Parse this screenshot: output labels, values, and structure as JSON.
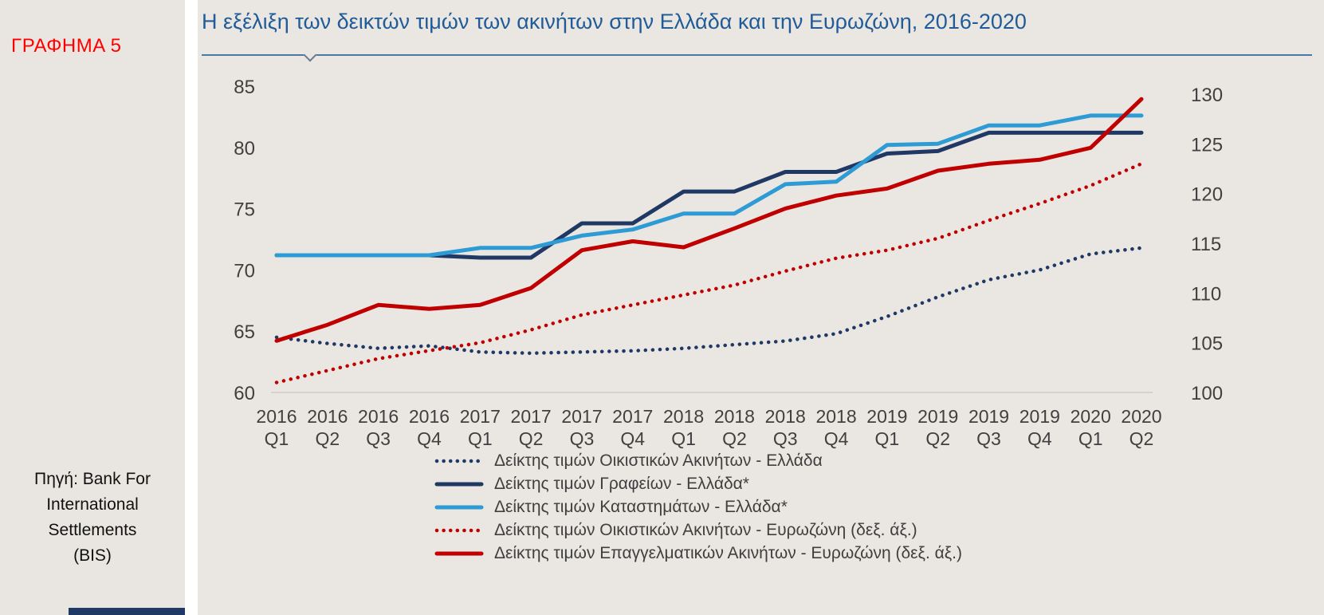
{
  "sidebar": {
    "figure_label": "ΓΡΑΦΗΜΑ 5",
    "source_lines": [
      "Πηγή: Bank For",
      "International",
      "Settlements",
      "(BIS)"
    ]
  },
  "header": {
    "title": "Η εξέλιξη των δεικτών τιμών των ακινήτων στην Ελλάδα και την Ευρωζώνη, 2016-2020"
  },
  "colors": {
    "title_blue": "#215c98",
    "figure_red": "#ff0000",
    "navy": "#1f3864",
    "light_blue": "#2e9bd5",
    "red": "#c00000",
    "axis_text": "#404040",
    "baseline": "#cfccc6"
  },
  "chart_data": {
    "type": "line",
    "title": "Η εξέλιξη των δεικτών τιμών των ακινήτων στην Ελλάδα και την Ευρωζώνη, 2016-2020",
    "categories": [
      "2016 Q1",
      "2016 Q2",
      "2016 Q3",
      "2016 Q4",
      "2017 Q1",
      "2017 Q2",
      "2017 Q3",
      "2017 Q4",
      "2018 Q1",
      "2018 Q2",
      "2018 Q3",
      "2018 Q4",
      "2019 Q1",
      "2019 Q2",
      "2019 Q3",
      "2019 Q4",
      "2020 Q1",
      "2020 Q2"
    ],
    "left_axis": {
      "min": 60,
      "max": 85,
      "ticks": [
        85,
        80,
        75,
        70,
        65,
        60
      ]
    },
    "right_axis": {
      "min": 100,
      "max": 130,
      "ticks": [
        130,
        125,
        120,
        115,
        110,
        105,
        100
      ]
    },
    "grid": "baseline-only",
    "legend_position": "bottom",
    "series": [
      {
        "name": "Δείκτης τιμών Οικιστικών Ακινήτων - Ελλάδα",
        "axis": "left",
        "style": "dotted",
        "color": "#1f3864",
        "values": [
          64.5,
          64.0,
          63.6,
          63.8,
          63.3,
          63.2,
          63.3,
          63.4,
          63.6,
          63.9,
          64.2,
          64.8,
          66.2,
          67.8,
          69.2,
          70.0,
          71.3,
          71.8
        ]
      },
      {
        "name": "Δείκτης τιμών Γραφείων - Ελλάδα*",
        "axis": "left",
        "style": "solid",
        "color": "#1f3864",
        "values": [
          71.2,
          71.2,
          71.2,
          71.2,
          71.0,
          71.0,
          73.8,
          73.8,
          76.4,
          76.4,
          78.0,
          78.0,
          79.5,
          79.7,
          81.2,
          81.2,
          81.2,
          81.2
        ]
      },
      {
        "name": "Δείκτης τιμών Καταστημάτων  - Ελλάδα*",
        "axis": "left",
        "style": "solid",
        "color": "#2e9bd5",
        "values": [
          71.2,
          71.2,
          71.2,
          71.2,
          71.8,
          71.8,
          72.8,
          73.3,
          74.6,
          74.6,
          77.0,
          77.2,
          80.2,
          80.3,
          81.8,
          81.8,
          82.6,
          82.6
        ]
      },
      {
        "name": "Δείκτης τιμών Οικιστικών Ακινήτων - Ευρωζώνη (δεξ. άξ.)",
        "axis": "right",
        "style": "dotted",
        "color": "#c00000",
        "values": [
          101.0,
          102.2,
          103.4,
          104.2,
          105.0,
          106.3,
          107.8,
          108.8,
          109.8,
          110.8,
          112.2,
          113.5,
          114.3,
          115.5,
          117.3,
          119.0,
          120.8,
          123.0
        ]
      },
      {
        "name": "Δείκτης τιμών Επαγγελματικών Ακινήτων - Ευρωζώνη (δεξ. άξ.)",
        "axis": "right",
        "style": "solid",
        "color": "#c00000",
        "values": [
          105.2,
          106.8,
          108.8,
          108.4,
          108.8,
          110.5,
          114.3,
          115.2,
          114.6,
          116.5,
          118.5,
          119.8,
          120.5,
          122.3,
          123.0,
          123.4,
          124.6,
          129.5
        ]
      }
    ]
  }
}
